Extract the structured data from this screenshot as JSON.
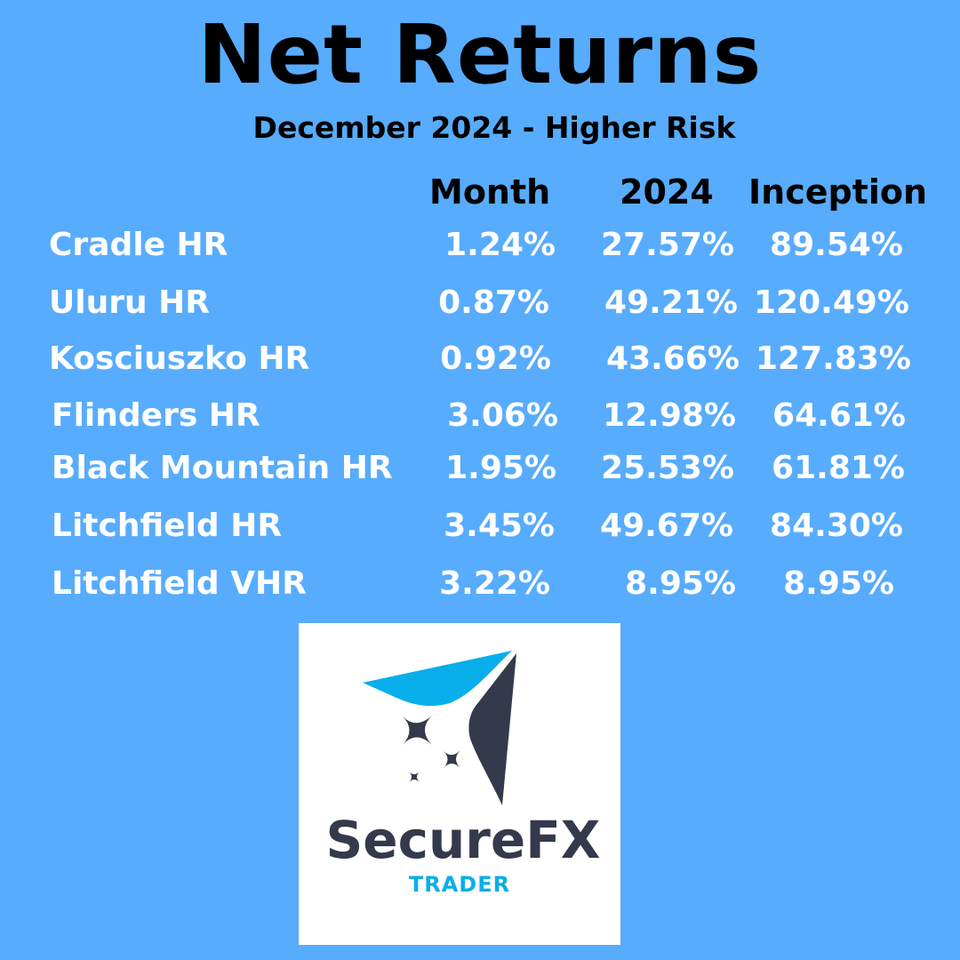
{
  "title": "Net Returns",
  "subtitle": "December 2024  - Higher Risk",
  "columns": [
    "Month",
    "2024",
    "Inception"
  ],
  "rows": [
    {
      "name": "Cradle HR",
      "month": "1.24%",
      "year": "27.57%",
      "inception": "89.54%"
    },
    {
      "name": "Uluru HR",
      "month": "0.87%",
      "year": "49.21%",
      "inception": "120.49%"
    },
    {
      "name": "Kosciuszko HR",
      "month": "0.92%",
      "year": "43.66%",
      "inception": "127.83%"
    },
    {
      "name": "Flinders HR",
      "month": "3.06%",
      "year": "12.98%",
      "inception": "64.61%"
    },
    {
      "name": "Black Mountain HR",
      "month": "1.95%",
      "year": "25.53%",
      "inception": "61.81%"
    },
    {
      "name": "Litchfield HR",
      "month": "3.45%",
      "year": "49.67%",
      "inception": "84.30%"
    },
    {
      "name": "Litchfield VHR",
      "month": "3.22%",
      "year": "8.95%",
      "inception": "8.95%"
    }
  ],
  "logo": {
    "name": "SecureFX",
    "tagline": "TRADER",
    "colors": {
      "dark": "#343a4b",
      "accent": "#08aeea"
    }
  },
  "colors": {
    "background": "#58acfd",
    "title": "#000000",
    "values": "#ffffff"
  }
}
